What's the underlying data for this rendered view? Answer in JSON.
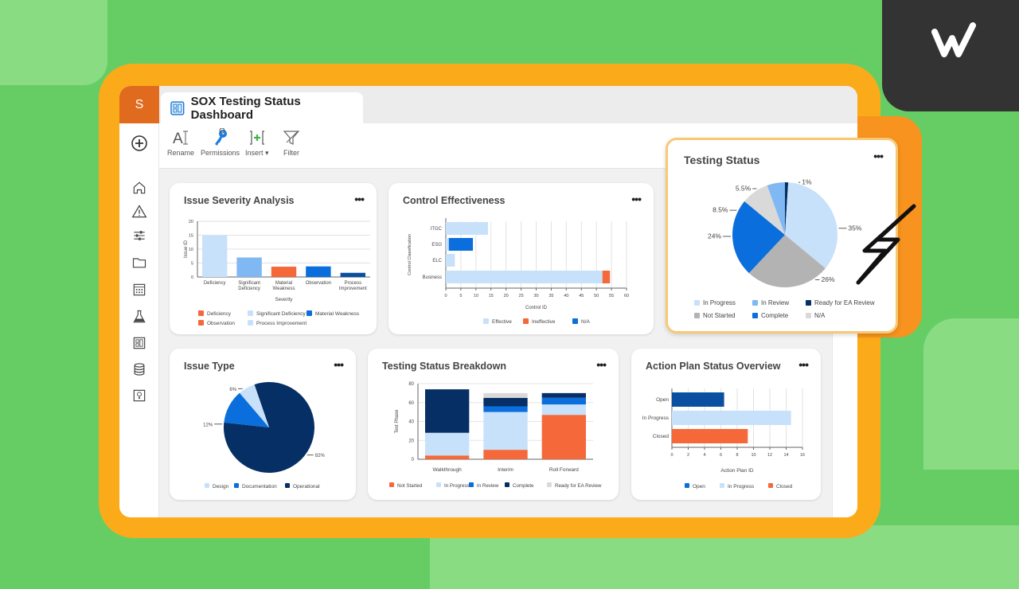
{
  "brand": {
    "logo": "W",
    "app_initial": "S"
  },
  "window": {
    "title": "SOX Testing Status Dashboard",
    "tab_icon": "dashboard-icon"
  },
  "toolbar": {
    "rename": "Rename",
    "permissions": "Permissions",
    "insert": "Insert",
    "filter": "Filter"
  },
  "sidebar": {
    "icons": [
      "plus-circle-icon",
      "home-icon",
      "warning-icon",
      "sliders-icon",
      "folder-icon",
      "calendar-icon",
      "flask-icon",
      "dashboard-icon",
      "database-icon",
      "lightbulb-icon"
    ]
  },
  "menu_label": "•••",
  "colors": {
    "light_blue": "#c8e1fa",
    "mid_blue": "#7fb8f2",
    "blue": "#0a6fdc",
    "dark_blue": "#0b4fa0",
    "navy": "#062f66",
    "orange": "#f4683a",
    "gray": "#b3b3b3",
    "light_gray": "#d9d9d9"
  },
  "chart_data": [
    {
      "id": "severity",
      "type": "bar",
      "title": "Issue Severity Analysis",
      "xlabel": "Severity",
      "ylabel": "Issue ID",
      "ylim": [
        0,
        20
      ],
      "yticks": [
        "0",
        "5",
        "10",
        "15",
        "20"
      ],
      "categories": [
        [
          "Deficiency"
        ],
        [
          "Significant",
          "Deficiency"
        ],
        [
          "Material",
          "Weakness"
        ],
        [
          "Observation"
        ],
        [
          "Process",
          "Improvement"
        ]
      ],
      "values": [
        15,
        7,
        3.7,
        3.8,
        1.5
      ],
      "bar_colors": [
        "#c8e1fa",
        "#7fb8f2",
        "#f4683a",
        "#0a6fdc",
        "#0b4fa0"
      ],
      "legend": [
        {
          "label": "Deficiency",
          "color": "#f4683a"
        },
        {
          "label": "Significant Deficiency",
          "color": "#c8e1fa"
        },
        {
          "label": "Material Weakness",
          "color": "#0a6fdc"
        },
        {
          "label": "Observation",
          "color": "#f4683a"
        },
        {
          "label": "Process Improvement",
          "color": "#c8e1fa"
        }
      ]
    },
    {
      "id": "control",
      "type": "bar",
      "orientation": "horizontal",
      "stacked": true,
      "title": "Control Effectiveness",
      "xlabel": "Control ID",
      "ylabel": "Control Classification",
      "xlim": [
        0,
        60
      ],
      "xticks": [
        "0",
        "5",
        "10",
        "15",
        "20",
        "25",
        "30",
        "35",
        "40",
        "45",
        "50",
        "55",
        "60"
      ],
      "categories": [
        "ITGC",
        "ESG",
        "ELC",
        "Business"
      ],
      "series": [
        {
          "name": "Effective",
          "color": "#c8e1fa",
          "values": [
            14,
            1,
            3,
            52
          ]
        },
        {
          "name": "Ineffective",
          "color": "#f4683a",
          "values": [
            0,
            0,
            0,
            2.5
          ]
        },
        {
          "name": "N/A",
          "color": "#0a6fdc",
          "values": [
            0,
            8,
            0,
            0
          ]
        }
      ]
    },
    {
      "id": "testing_status",
      "type": "pie",
      "title": "Testing Status",
      "slices": [
        {
          "label": "Ready for EA Review",
          "value": 1,
          "text": "1%",
          "color": "#062f66"
        },
        {
          "label": "In Progress",
          "value": 35,
          "text": "35%",
          "color": "#c8e1fa"
        },
        {
          "label": "Not Started",
          "value": 26,
          "text": "26%",
          "color": "#b3b3b3"
        },
        {
          "label": "Complete",
          "value": 24,
          "text": "24%",
          "color": "#0a6fdc"
        },
        {
          "label": "N/A",
          "value": 8.5,
          "text": "8.5%",
          "color": "#d9d9d9"
        },
        {
          "label": "In Review",
          "value": 5.5,
          "text": "5.5%",
          "color": "#7fb8f2"
        }
      ],
      "legend": [
        {
          "label": "In Progress",
          "color": "#c8e1fa"
        },
        {
          "label": "In Review",
          "color": "#7fb8f2"
        },
        {
          "label": "Ready for EA Review",
          "color": "#062f66"
        },
        {
          "label": "Not Started",
          "color": "#b3b3b3"
        },
        {
          "label": "Complete",
          "color": "#0a6fdc"
        },
        {
          "label": "N/A",
          "color": "#d9d9d9"
        }
      ]
    },
    {
      "id": "issue_type",
      "type": "pie",
      "title": "Issue Type",
      "slices": [
        {
          "label": "Operational",
          "value": 82,
          "text": "82%",
          "color": "#062f66"
        },
        {
          "label": "Documentation",
          "value": 12,
          "text": "12%",
          "color": "#0a6fdc"
        },
        {
          "label": "Design",
          "value": 6,
          "text": "6%",
          "color": "#c8e1fa"
        }
      ],
      "legend": [
        {
          "label": "Design",
          "color": "#c8e1fa"
        },
        {
          "label": "Documentation",
          "color": "#0a6fdc"
        },
        {
          "label": "Operational",
          "color": "#062f66"
        }
      ]
    },
    {
      "id": "breakdown",
      "type": "bar",
      "stacked": true,
      "title": "Testing Status Breakdown",
      "ylabel": "Test Phase",
      "ylim": [
        0,
        80
      ],
      "yticks": [
        "0",
        "20",
        "40",
        "60",
        "80"
      ],
      "categories": [
        "Walkthrough",
        "Interim",
        "Roll Forward"
      ],
      "series": [
        {
          "name": "Not Started",
          "color": "#f4683a",
          "values": [
            4,
            10,
            47
          ]
        },
        {
          "name": "In Progress",
          "color": "#c8e1fa",
          "values": [
            24,
            40,
            11
          ]
        },
        {
          "name": "In Review",
          "color": "#0a6fdc",
          "values": [
            0,
            6,
            7
          ]
        },
        {
          "name": "Complete",
          "color": "#062f66",
          "values": [
            46,
            9,
            5
          ]
        },
        {
          "name": "Ready for  EA Review",
          "color": "#d9d9d9",
          "values": [
            0,
            5,
            0
          ]
        }
      ]
    },
    {
      "id": "action_plan",
      "type": "bar",
      "orientation": "horizontal",
      "title": "Action Plan Status Overview",
      "xlabel": "Action Plan ID",
      "xlim": [
        0,
        16
      ],
      "xticks": [
        "0",
        "2",
        "4",
        "6",
        "8",
        "10",
        "12",
        "14",
        "16"
      ],
      "categories": [
        "Open",
        "In Progress",
        "Closed"
      ],
      "values": [
        6.4,
        14.6,
        9.3
      ],
      "bar_colors": [
        "#0b4fa0",
        "#c8e1fa",
        "#f4683a"
      ],
      "legend": [
        {
          "label": "Open",
          "color": "#0a6fdc"
        },
        {
          "label": "In Progress",
          "color": "#c8e1fa"
        },
        {
          "label": "Closed",
          "color": "#f4683a"
        }
      ]
    }
  ]
}
